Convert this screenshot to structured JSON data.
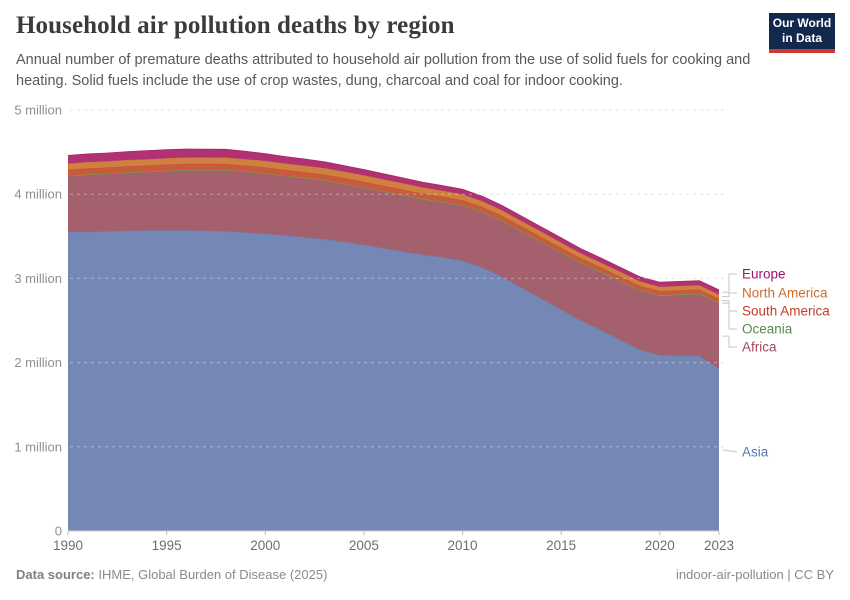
{
  "header": {
    "title": "Household air pollution deaths by region",
    "subtitle": "Annual number of premature deaths attributed to household air pollution from the use of solid fuels for cooking and heating. Solid fuels include the use of crop wastes, dung, charcoal and coal for indoor cooking.",
    "logo": {
      "line1": "Our World",
      "line2": "in Data",
      "bg_color": "#12294d",
      "bar_color": "#d13833"
    }
  },
  "chart_data": {
    "type": "area",
    "stacked": true,
    "title": "Household air pollution deaths by region",
    "xlabel": "",
    "ylabel": "",
    "ylim": [
      0,
      5
    ],
    "grid": "dashed-horizontal",
    "legend_position": "right-of-plot",
    "x": [
      1990,
      1991,
      1992,
      1993,
      1994,
      1995,
      1996,
      1997,
      1998,
      1999,
      2000,
      2001,
      2002,
      2003,
      2004,
      2005,
      2006,
      2007,
      2008,
      2009,
      2010,
      2011,
      2012,
      2013,
      2014,
      2015,
      2016,
      2017,
      2018,
      2019,
      2020,
      2021,
      2022,
      2023
    ],
    "x_ticks": [
      1990,
      1995,
      2000,
      2005,
      2010,
      2015,
      2020,
      2023
    ],
    "y_ticks": [
      {
        "value": 0,
        "label": "0"
      },
      {
        "value": 1,
        "label": "1 million"
      },
      {
        "value": 2,
        "label": "2 million"
      },
      {
        "value": 3,
        "label": "3 million"
      },
      {
        "value": 4,
        "label": "4 million"
      },
      {
        "value": 5,
        "label": "5 million"
      }
    ],
    "unit_hint": "values in millions of deaths per year, stacked bottom-to-top",
    "series": [
      {
        "name": "Asia",
        "fill": "#7588b5",
        "line": "#6a81b1",
        "label_color": "#5878b0",
        "values": [
          3.55,
          3.555,
          3.56,
          3.565,
          3.57,
          3.57,
          3.57,
          3.565,
          3.56,
          3.545,
          3.53,
          3.51,
          3.49,
          3.465,
          3.435,
          3.4,
          3.36,
          3.32,
          3.28,
          3.25,
          3.21,
          3.13,
          3.02,
          2.89,
          2.76,
          2.63,
          2.5,
          2.39,
          2.27,
          2.15,
          2.09,
          2.08,
          2.08,
          1.93
        ]
      },
      {
        "name": "Africa",
        "fill": "#a5606d",
        "line": "#9d5a68",
        "label_color": "#a2485c",
        "values": [
          0.66,
          0.67,
          0.675,
          0.685,
          0.69,
          0.7,
          0.71,
          0.715,
          0.72,
          0.715,
          0.71,
          0.7,
          0.695,
          0.69,
          0.68,
          0.67,
          0.665,
          0.66,
          0.655,
          0.65,
          0.65,
          0.65,
          0.655,
          0.66,
          0.665,
          0.67,
          0.675,
          0.68,
          0.69,
          0.7,
          0.7,
          0.72,
          0.73,
          0.77
        ]
      },
      {
        "name": "Oceania",
        "fill": "#8a9a57",
        "line": "#7e8f4e",
        "label_color": "#578a4a",
        "values": [
          0.01,
          0.01,
          0.01,
          0.01,
          0.01,
          0.01,
          0.01,
          0.01,
          0.01,
          0.01,
          0.01,
          0.01,
          0.01,
          0.01,
          0.01,
          0.01,
          0.01,
          0.01,
          0.01,
          0.01,
          0.01,
          0.01,
          0.01,
          0.01,
          0.01,
          0.01,
          0.011,
          0.011,
          0.011,
          0.011,
          0.012,
          0.012,
          0.012,
          0.012
        ]
      },
      {
        "name": "South America",
        "fill": "#c75b3b",
        "line": "#c25436",
        "label_color": "#bf3d26",
        "values": [
          0.072,
          0.072,
          0.072,
          0.071,
          0.071,
          0.071,
          0.071,
          0.071,
          0.07,
          0.07,
          0.07,
          0.069,
          0.068,
          0.068,
          0.067,
          0.067,
          0.065,
          0.064,
          0.062,
          0.061,
          0.06,
          0.059,
          0.058,
          0.057,
          0.056,
          0.055,
          0.053,
          0.052,
          0.051,
          0.05,
          0.048,
          0.047,
          0.047,
          0.046
        ]
      },
      {
        "name": "North America",
        "fill": "#d0803f",
        "line": "#ca7838",
        "label_color": "#c96d2d",
        "values": [
          0.073,
          0.074,
          0.074,
          0.075,
          0.075,
          0.076,
          0.076,
          0.076,
          0.076,
          0.076,
          0.075,
          0.076,
          0.076,
          0.077,
          0.077,
          0.078,
          0.076,
          0.074,
          0.072,
          0.071,
          0.07,
          0.068,
          0.066,
          0.064,
          0.062,
          0.06,
          0.058,
          0.056,
          0.055,
          0.053,
          0.052,
          0.051,
          0.05,
          0.05
        ]
      },
      {
        "name": "Europe",
        "fill": "#b13273",
        "line": "#aa2a6b",
        "label_color": "#a0136b",
        "values": [
          0.095,
          0.096,
          0.097,
          0.098,
          0.099,
          0.1,
          0.099,
          0.098,
          0.096,
          0.092,
          0.085,
          0.082,
          0.078,
          0.074,
          0.07,
          0.067,
          0.065,
          0.063,
          0.061,
          0.059,
          0.058,
          0.057,
          0.056,
          0.056,
          0.055,
          0.055,
          0.054,
          0.054,
          0.053,
          0.053,
          0.052,
          0.053,
          0.054,
          0.055
        ]
      }
    ]
  },
  "colors": {
    "gridline": "#d7d7d7",
    "gridline_overlay": "rgba(255,255,255,0.38)",
    "axis": "#cccccc",
    "tick": "#bbbbbb",
    "y_tick_label": "#8f8f8f",
    "x_tick_label": "#6e6e6e",
    "connector": "#c6c6c6"
  },
  "footer": {
    "source_label": "Data source:",
    "source_text": " IHME, Global Burden of Disease (2025)",
    "note": "indoor-air-pollution | CC BY"
  }
}
